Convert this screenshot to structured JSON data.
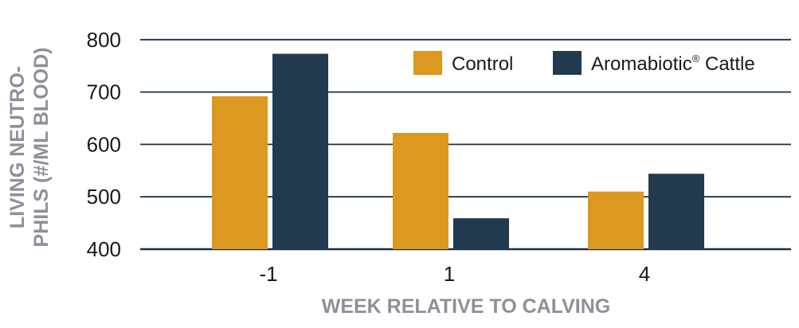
{
  "chart_data": {
    "type": "bar",
    "categories": [
      "-1",
      "1",
      "4"
    ],
    "series": [
      {
        "name": "Control",
        "values": [
          692,
          622,
          510
        ],
        "color": "#dc981f"
      },
      {
        "name": "Aromabiotic® Cattle",
        "values": [
          773,
          459,
          544
        ],
        "color": "#213a4d"
      }
    ],
    "y_ticks": [
      "400",
      "500",
      "600",
      "700",
      "800"
    ],
    "ylim": [
      400,
      850
    ],
    "xlabel": "WEEK RELATIVE TO CALVING",
    "ylabel_lines": [
      "LIVING NEUTRO-",
      "PHILS (#/ML BLOOD)"
    ],
    "grid": true,
    "legend_position": "top-right",
    "gridline_color": "#1e3140"
  },
  "legend": {
    "control": "Control",
    "aroma_name": "Aromabiotic",
    "aroma_reg": "®",
    "aroma_suffix": " Cattle"
  }
}
